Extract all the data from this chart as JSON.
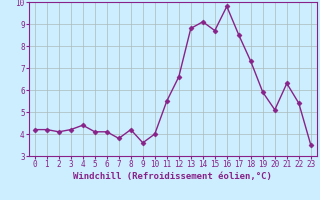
{
  "x": [
    0,
    1,
    2,
    3,
    4,
    5,
    6,
    7,
    8,
    9,
    10,
    11,
    12,
    13,
    14,
    15,
    16,
    17,
    18,
    19,
    20,
    21,
    22,
    23
  ],
  "y": [
    4.2,
    4.2,
    4.1,
    4.2,
    4.4,
    4.1,
    4.1,
    3.8,
    4.2,
    3.6,
    4.0,
    5.5,
    6.6,
    8.8,
    9.1,
    8.7,
    9.8,
    8.5,
    7.3,
    5.9,
    5.1,
    6.3,
    5.4,
    3.5
  ],
  "line_color": "#882288",
  "marker": "D",
  "markersize": 2.5,
  "linewidth": 1.0,
  "xlabel": "Windchill (Refroidissement éolien,°C)",
  "xlim": [
    -0.5,
    23.5
  ],
  "ylim": [
    3,
    10
  ],
  "yticks": [
    3,
    4,
    5,
    6,
    7,
    8,
    9,
    10
  ],
  "xticks": [
    0,
    1,
    2,
    3,
    4,
    5,
    6,
    7,
    8,
    9,
    10,
    11,
    12,
    13,
    14,
    15,
    16,
    17,
    18,
    19,
    20,
    21,
    22,
    23
  ],
  "bg_color": "#cceeff",
  "grid_color": "#aabbbb",
  "tick_color": "#882288",
  "label_color": "#882288",
  "xlabel_fontsize": 6.5,
  "tick_fontsize": 5.5,
  "fig_width": 3.2,
  "fig_height": 2.0,
  "dpi": 100
}
